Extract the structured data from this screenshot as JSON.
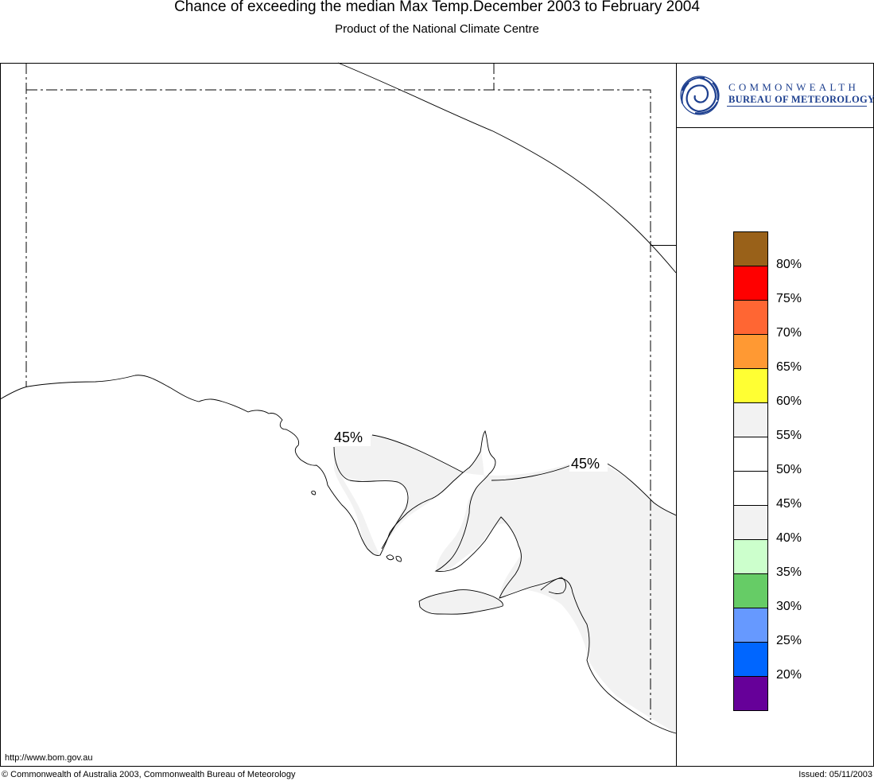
{
  "header": {
    "title": "Chance of exceeding the median Max Temp.December 2003 to February 2004",
    "subtitle": "Product of the National Climate Centre"
  },
  "logo": {
    "line1": "COMMONWEALTH",
    "line2": "BUREAU OF METEOROLOGY",
    "brand_color": "#1d3f8f"
  },
  "legend": {
    "colors": [
      "#996119",
      "#ff0000",
      "#ff6633",
      "#ff9933",
      "#ffff33",
      "#f2f2f2",
      "#ffffff",
      "#ffffff",
      "#f2f2f2",
      "#ccffcc",
      "#66cc66",
      "#6699ff",
      "#0066ff",
      "#660099"
    ],
    "labels": [
      "80%",
      "75%",
      "70%",
      "65%",
      "60%",
      "55%",
      "50%",
      "45%",
      "40%",
      "35%",
      "30%",
      "25%",
      "20%"
    ]
  },
  "map": {
    "contour_labels": [
      "45%",
      "45%"
    ],
    "shaded_color": "#f2f2f2"
  },
  "footer": {
    "url": "http://www.bom.gov.au",
    "copyright": "© Commonwealth of Australia 2003, Commonwealth Bureau of Meteorology",
    "issued": "Issued: 05/11/2003"
  }
}
